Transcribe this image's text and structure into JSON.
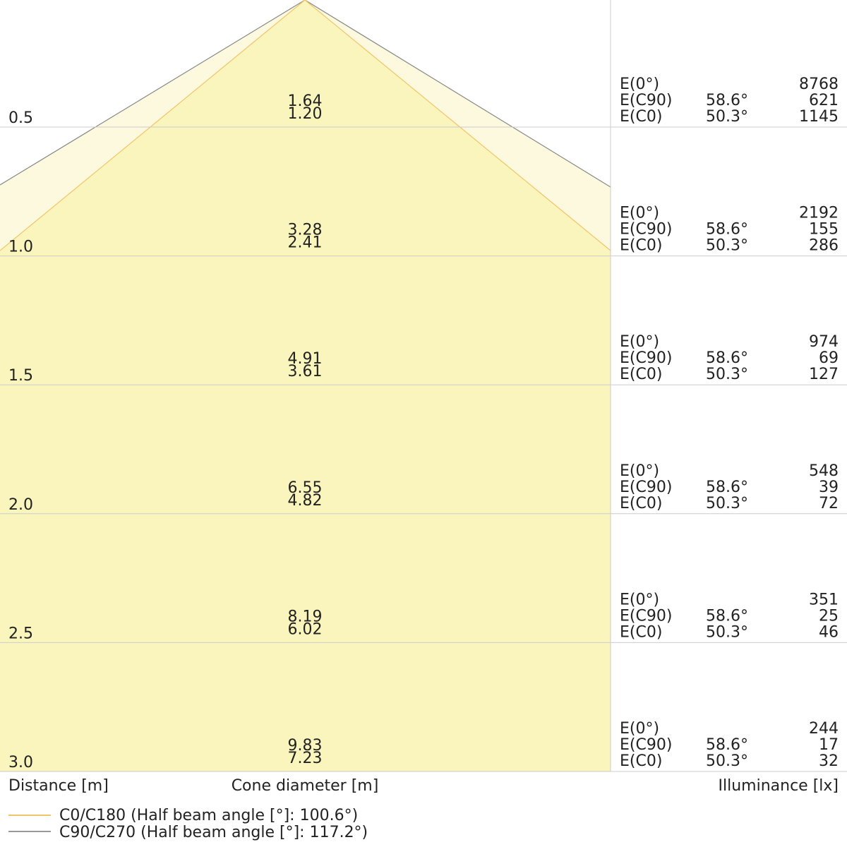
{
  "rows": [
    {
      "distance": "0.5",
      "c90_diameter": "1.64",
      "c0_diameter": "1.20",
      "e0": "8768",
      "ec90_angle": "58.6°",
      "ec90": "621",
      "ec0_angle": "50.3°",
      "ec0": "1145"
    },
    {
      "distance": "1.0",
      "c90_diameter": "3.28",
      "c0_diameter": "2.41",
      "e0": "2192",
      "ec90_angle": "58.6°",
      "ec90": "155",
      "ec0_angle": "50.3°",
      "ec0": "286"
    },
    {
      "distance": "1.5",
      "c90_diameter": "4.91",
      "c0_diameter": "3.61",
      "e0": "974",
      "ec90_angle": "58.6°",
      "ec90": "69",
      "ec0_angle": "50.3°",
      "ec0": "127"
    },
    {
      "distance": "2.0",
      "c90_diameter": "6.55",
      "c0_diameter": "4.82",
      "e0": "548",
      "ec90_angle": "58.6°",
      "ec90": "39",
      "ec0_angle": "50.3°",
      "ec0": "72"
    },
    {
      "distance": "2.5",
      "c90_diameter": "8.19",
      "c0_diameter": "6.02",
      "e0": "351",
      "ec90_angle": "58.6°",
      "ec90": "25",
      "ec0_angle": "50.3°",
      "ec0": "46"
    },
    {
      "distance": "3.0",
      "c90_diameter": "9.83",
      "c0_diameter": "7.23",
      "e0": "244",
      "ec90_angle": "58.6°",
      "ec90": "17",
      "ec0_angle": "50.3°",
      "ec0": "32"
    }
  ],
  "row_labels": {
    "e0": "E(0°)",
    "ec90": "E(C90)",
    "ec0": "E(C0)"
  },
  "footer": {
    "distance": "Distance [m]",
    "cone": "Cone diameter [m]",
    "illuminance": "Illuminance [lx]"
  },
  "legend": {
    "c0": "C0/C180 (Half beam angle [°]: 100.6°)",
    "c90": "C90/C270 (Half beam angle [°]: 117.2°)"
  }
}
